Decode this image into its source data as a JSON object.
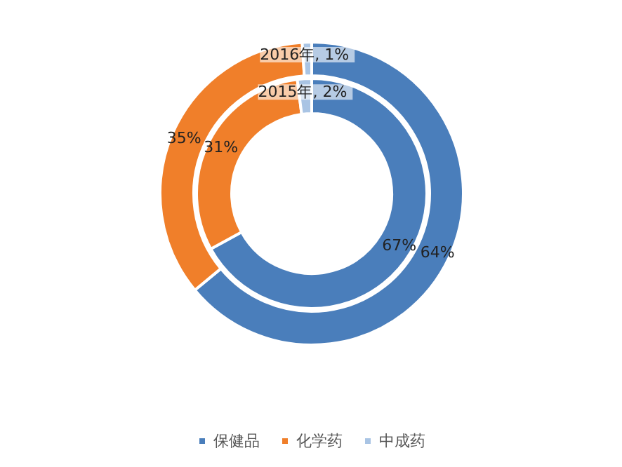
{
  "chart_data": {
    "type": "donut",
    "categories": [
      "保健品",
      "化学药",
      "中成药"
    ],
    "colors": [
      "#4a7ebb",
      "#f07f2a",
      "#a9c4e4"
    ],
    "series": [
      {
        "values": [
          64,
          35,
          1
        ],
        "value_labels": [
          "64%",
          "35%",
          "2016年, 1%"
        ]
      },
      {
        "values": [
          67,
          31,
          2
        ],
        "value_labels": [
          "67%",
          "31%",
          "2015年, 2%"
        ]
      }
    ],
    "legend": "bottom"
  }
}
